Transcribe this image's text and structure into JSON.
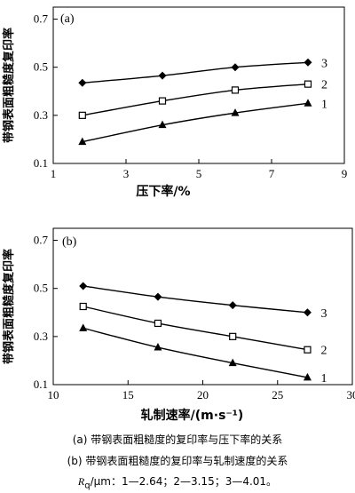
{
  "chart_data": [
    {
      "type": "line",
      "panel_label": "(a)",
      "xlabel": "压下率/%",
      "ylabel": "带钢表面粗糙度复印率",
      "xlim": [
        1,
        9
      ],
      "ylim": [
        0.1,
        0.75
      ],
      "xticks": [
        "1",
        "3",
        "5",
        "7",
        "9"
      ],
      "yticks": [
        "0.1",
        "0.3",
        "0.5",
        "0.7"
      ],
      "grid": false,
      "x": [
        1.8,
        4.0,
        6.0,
        8.0
      ],
      "series": [
        {
          "name": "3",
          "marker": "diamond-filled",
          "values": [
            0.435,
            0.465,
            0.5,
            0.52
          ]
        },
        {
          "name": "2",
          "marker": "square-open",
          "values": [
            0.3,
            0.36,
            0.405,
            0.43
          ]
        },
        {
          "name": "1",
          "marker": "triangle-filled",
          "values": [
            0.19,
            0.26,
            0.31,
            0.35
          ]
        }
      ]
    },
    {
      "type": "line",
      "panel_label": "(b)",
      "xlabel": "轧制速率/(m·s⁻¹)",
      "ylabel": "带钢表面粗糙度复印率",
      "xlim": [
        10,
        30
      ],
      "ylim": [
        0.1,
        0.75
      ],
      "xticks": [
        "10",
        "15",
        "20",
        "25",
        "30"
      ],
      "yticks": [
        "0.1",
        "0.3",
        "0.5",
        "0.7"
      ],
      "grid": false,
      "x": [
        12,
        17,
        22,
        27
      ],
      "series": [
        {
          "name": "3",
          "marker": "diamond-filled",
          "values": [
            0.51,
            0.465,
            0.43,
            0.4
          ]
        },
        {
          "name": "2",
          "marker": "square-open",
          "values": [
            0.425,
            0.355,
            0.3,
            0.245
          ]
        },
        {
          "name": "1",
          "marker": "triangle-filled",
          "values": [
            0.335,
            0.255,
            0.19,
            0.13
          ]
        }
      ]
    }
  ],
  "captions": {
    "line_a": "(a)  带钢表面粗糙度的复印率与压下率的关系",
    "line_b": "(b)  带钢表面粗糙度的复印率与轧制速度的关系",
    "line_c_symbol": "R",
    "line_c_subscript": "q",
    "line_c_rest": "/μm：1—2.64；2—3.15；3—4.01。"
  }
}
